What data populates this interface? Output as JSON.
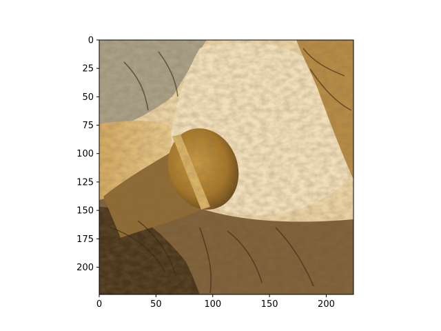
{
  "chart_data": {
    "type": "heatmap",
    "title": "",
    "xlabel": "",
    "ylabel": "",
    "image_description": "A stylized, painterly texture image resembling wrinkled elephant skin in tan, ochre, cream and dark brown tones, with a brown oval microphone-like shape at the center-left",
    "image_size": {
      "cols": 224,
      "rows": 224
    },
    "xlim": [
      0,
      224
    ],
    "ylim": [
      224,
      0
    ],
    "x_ticks": [
      0,
      50,
      100,
      150,
      200
    ],
    "y_ticks": [
      0,
      25,
      50,
      75,
      100,
      125,
      150,
      175,
      200
    ],
    "grid": false,
    "colors": {
      "cream": "#efdcb6",
      "light_tan": "#d9b97d",
      "ochre": "#b88a3e",
      "brown": "#7a5a2e",
      "dark_brown": "#3e2c16",
      "gray_blue": "#8d8a7c"
    }
  }
}
